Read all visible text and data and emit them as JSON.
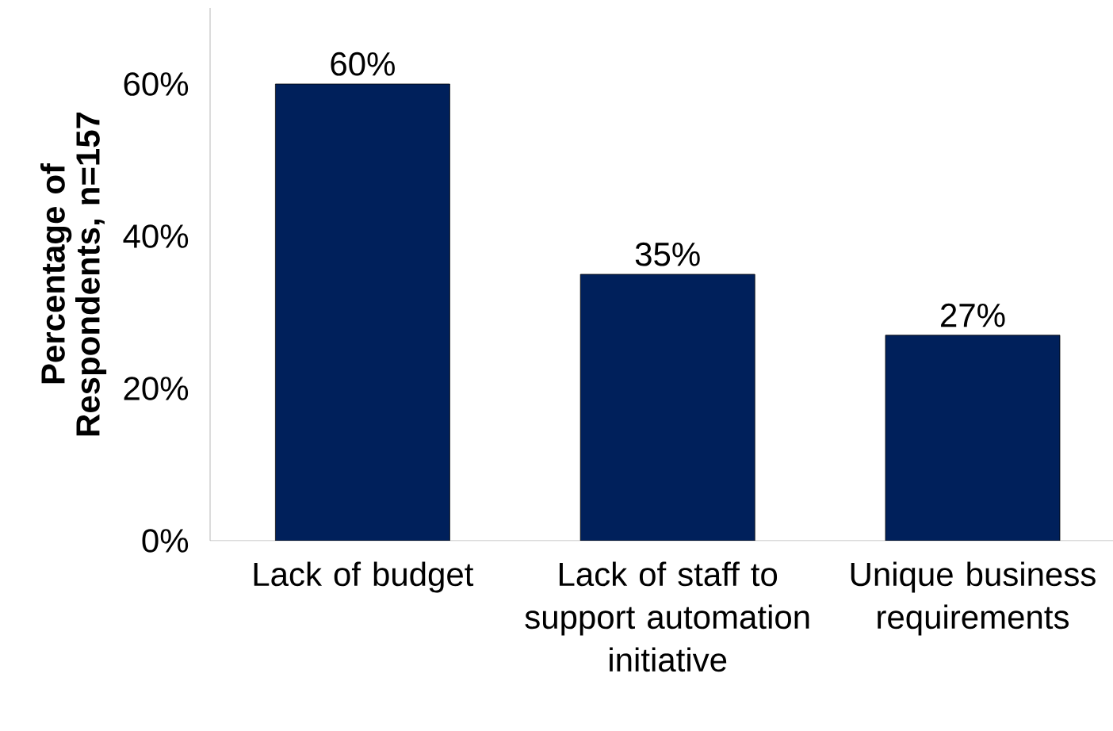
{
  "chart_data": {
    "type": "bar",
    "ylabel": "Percentage of Respondents, n=157",
    "categories": [
      "Lack of budget",
      "Lack of staff to support automation initiative",
      "Unique business requirements"
    ],
    "values": [
      60,
      35,
      27
    ],
    "value_labels": [
      "60%",
      "35%",
      "27%"
    ],
    "color": "#00205b",
    "ylim": [
      0,
      70
    ],
    "yticks": [
      {
        "value": 0,
        "label": "0%"
      },
      {
        "value": 20,
        "label": "20%"
      },
      {
        "value": 40,
        "label": "40%"
      },
      {
        "value": 60,
        "label": "60%"
      }
    ],
    "grid": false
  }
}
